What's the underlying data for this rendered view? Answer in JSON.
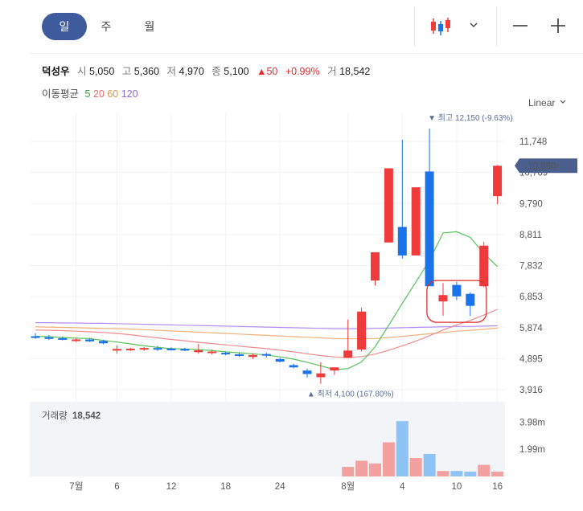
{
  "toolbar": {
    "tabs": [
      {
        "label": "일",
        "active": true
      },
      {
        "label": "주",
        "active": false
      },
      {
        "label": "월",
        "active": false
      }
    ],
    "chart_type_icon": "candlestick-icon",
    "dropdown_icon": "chevron-down-icon",
    "zoom_out_icon": "minus-icon",
    "zoom_in_icon": "plus-icon"
  },
  "quote": {
    "name": "덕성우",
    "open_label": "시",
    "open": "5,050",
    "high_label": "고",
    "high": "5,360",
    "low_label": "저",
    "low": "4,970",
    "close_label": "종",
    "close": "5,100",
    "change": "50",
    "change_pct": "+0.99%",
    "volume_label": "거",
    "volume": "18,542"
  },
  "ma_legend": {
    "label": "이동평균",
    "ma5": "5",
    "ma20": "20",
    "ma60": "60",
    "ma120": "120"
  },
  "scale": "Linear",
  "colors": {
    "up": "#ef3b3b",
    "down": "#1a73e8",
    "vol_up": "#f2a0a0",
    "vol_down": "#8ec3f5",
    "ma5": "#57c25b",
    "ma20": "#f28b8b",
    "ma60": "#f0b27a",
    "ma120": "#b28ef0",
    "accent": "#3f5b9c",
    "highlight": "#d93030"
  },
  "chart_data": {
    "type": "candlestick",
    "y_ticks": [
      "11,748",
      "10,769",
      "9,790",
      "8,811",
      "7,832",
      "6,853",
      "5,874",
      "4,895",
      "3,916"
    ],
    "ylim": [
      3916,
      12650
    ],
    "current_price_label": "10,980",
    "current_price": 10980,
    "high_marker": "▼ 최고 12,150 (-9.63%)",
    "low_marker": "▲ 최저 4,100 (167.80%)",
    "x_tick_labels": [
      "7월",
      "6",
      "12",
      "18",
      "24",
      "8월",
      "4",
      "10",
      "16"
    ],
    "candles": [
      {
        "o": 5600,
        "h": 5700,
        "l": 5520,
        "c": 5580
      },
      {
        "o": 5570,
        "h": 5640,
        "l": 5480,
        "c": 5520
      },
      {
        "o": 5540,
        "h": 5590,
        "l": 5470,
        "c": 5500
      },
      {
        "o": 5480,
        "h": 5540,
        "l": 5420,
        "c": 5500
      },
      {
        "o": 5500,
        "h": 5540,
        "l": 5420,
        "c": 5440
      },
      {
        "o": 5450,
        "h": 5490,
        "l": 5350,
        "c": 5380
      },
      {
        "o": 5180,
        "h": 5310,
        "l": 5050,
        "c": 5200
      },
      {
        "o": 5190,
        "h": 5240,
        "l": 5130,
        "c": 5210
      },
      {
        "o": 5190,
        "h": 5260,
        "l": 5140,
        "c": 5230
      },
      {
        "o": 5230,
        "h": 5300,
        "l": 5140,
        "c": 5190
      },
      {
        "o": 5210,
        "h": 5250,
        "l": 5150,
        "c": 5180
      },
      {
        "o": 5200,
        "h": 5240,
        "l": 5130,
        "c": 5150
      },
      {
        "o": 5100,
        "h": 5360,
        "l": 5050,
        "c": 5160
      },
      {
        "o": 5100,
        "h": 5180,
        "l": 5020,
        "c": 5120
      },
      {
        "o": 5080,
        "h": 5110,
        "l": 5000,
        "c": 5030
      },
      {
        "o": 5030,
        "h": 5080,
        "l": 4950,
        "c": 5000
      },
      {
        "o": 4950,
        "h": 5060,
        "l": 4880,
        "c": 5010
      },
      {
        "o": 5040,
        "h": 5080,
        "l": 4930,
        "c": 4990
      },
      {
        "o": 4880,
        "h": 4920,
        "l": 4780,
        "c": 4800
      },
      {
        "o": 4690,
        "h": 4740,
        "l": 4590,
        "c": 4620
      },
      {
        "o": 4520,
        "h": 4580,
        "l": 4300,
        "c": 4410
      },
      {
        "o": 4310,
        "h": 4780,
        "l": 4100,
        "c": 4430
      },
      {
        "o": 4520,
        "h": 4580,
        "l": 4380,
        "c": 4620
      },
      {
        "o": 4920,
        "h": 6130,
        "l": 4920,
        "c": 5150
      },
      {
        "o": 5180,
        "h": 6500,
        "l": 5120,
        "c": 6380
      },
      {
        "o": 7360,
        "h": 8250,
        "l": 7200,
        "c": 8250
      },
      {
        "o": 8560,
        "h": 10900,
        "l": 8560,
        "c": 10900
      },
      {
        "o": 9050,
        "h": 11800,
        "l": 8050,
        "c": 8150
      },
      {
        "o": 8150,
        "h": 10300,
        "l": 8150,
        "c": 10300
      },
      {
        "o": 10800,
        "h": 12150,
        "l": 7200,
        "c": 7180
      },
      {
        "o": 6700,
        "h": 7280,
        "l": 6250,
        "c": 6900
      },
      {
        "o": 7220,
        "h": 7320,
        "l": 6740,
        "c": 6860
      },
      {
        "o": 6940,
        "h": 6990,
        "l": 6240,
        "c": 6560
      },
      {
        "o": 7180,
        "h": 8580,
        "l": 7150,
        "c": 8460
      },
      {
        "o": 10020,
        "h": 11000,
        "l": 9770,
        "c": 10980
      }
    ],
    "volume": {
      "label": "거래량",
      "value": "18,542",
      "y_ticks": [
        "3.98m",
        "1.99m"
      ],
      "ylim": [
        0,
        5000000
      ],
      "bars": [
        {
          "v": 700000,
          "up": true
        },
        {
          "v": 1150000,
          "up": true
        },
        {
          "v": 950000,
          "up": true
        },
        {
          "v": 2500000,
          "up": true
        },
        {
          "v": 4050000,
          "up": false
        },
        {
          "v": 1350000,
          "up": true
        },
        {
          "v": 1650000,
          "up": false
        },
        {
          "v": 400000,
          "up": true
        },
        {
          "v": 400000,
          "up": false
        },
        {
          "v": 350000,
          "up": false
        },
        {
          "v": 850000,
          "up": true
        },
        {
          "v": 350000,
          "up": true
        }
      ]
    },
    "moving_averages": {
      "ma5": [
        5600,
        5590,
        5560,
        5540,
        5530,
        5470,
        5420,
        5360,
        5300,
        5250,
        5210,
        5200,
        5180,
        5150,
        5110,
        5080,
        5050,
        5010,
        4950,
        4880,
        4780,
        4670,
        4550,
        4580,
        4790,
        5270,
        5950,
        6640,
        7310,
        8000,
        8860,
        8900,
        8720,
        8210,
        7800
      ],
      "ma20": [
        5800,
        5790,
        5780,
        5760,
        5740,
        5720,
        5690,
        5650,
        5600,
        5550,
        5500,
        5460,
        5410,
        5370,
        5330,
        5290,
        5250,
        5210,
        5160,
        5110,
        5050,
        4990,
        4950,
        4930,
        4960,
        5040,
        5160,
        5300,
        5450,
        5620,
        5800,
        5960,
        6100,
        6270,
        6450
      ],
      "ma60": [
        5900,
        5890,
        5880,
        5870,
        5860,
        5850,
        5840,
        5830,
        5810,
        5790,
        5770,
        5750,
        5730,
        5710,
        5690,
        5670,
        5650,
        5630,
        5610,
        5590,
        5570,
        5550,
        5530,
        5520,
        5520,
        5530,
        5560,
        5600,
        5640,
        5680,
        5720,
        5760,
        5790,
        5820,
        5860
      ],
      "ma120": [
        6030,
        6030,
        6020,
        6020,
        6010,
        6010,
        6000,
        5990,
        5980,
        5970,
        5960,
        5950,
        5940,
        5930,
        5920,
        5910,
        5900,
        5890,
        5880,
        5870,
        5860,
        5850,
        5840,
        5840,
        5840,
        5850,
        5860,
        5870,
        5880,
        5890,
        5900,
        5910,
        5910,
        5920,
        5930
      ]
    }
  }
}
